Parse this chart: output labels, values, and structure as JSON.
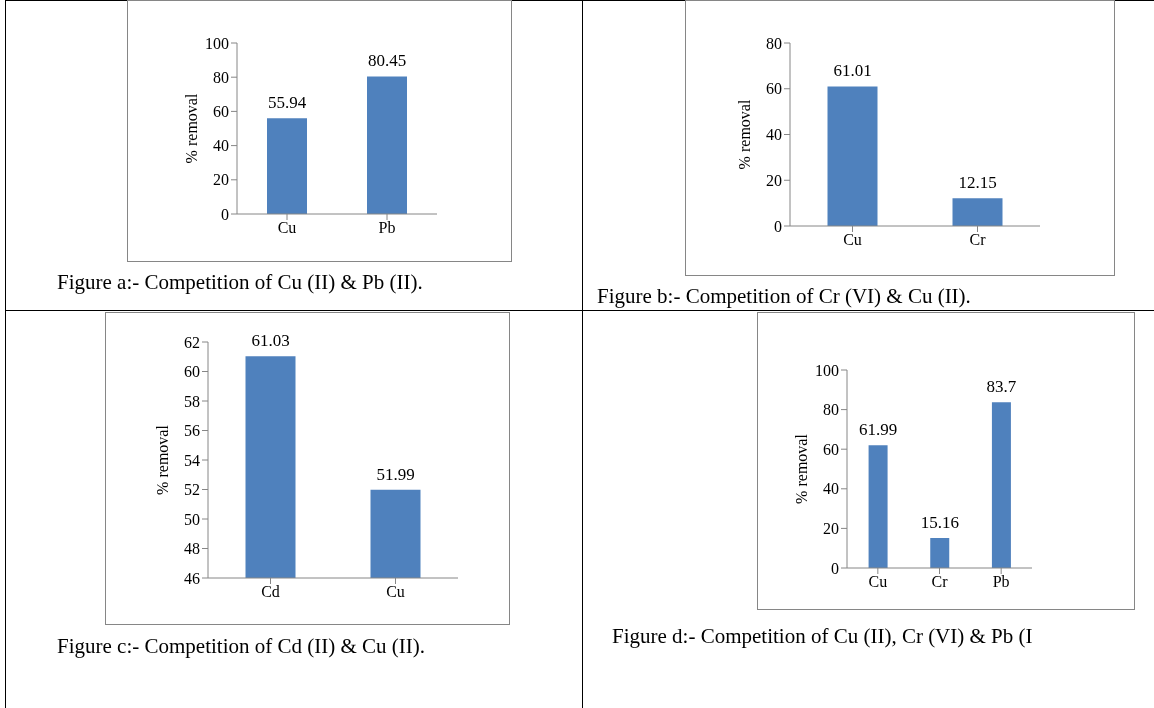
{
  "chart_data": [
    {
      "type": "bar",
      "title": "Figure a:- Competition of Cu (II) & Pb (II).",
      "ylabel": "% removal",
      "categories": [
        "Cu",
        "Pb"
      ],
      "values": [
        55.94,
        80.45
      ],
      "color": "#4f81bd",
      "ylim": [
        0,
        100
      ],
      "yticks": [
        0,
        20,
        40,
        60,
        80,
        100
      ],
      "data_labels": true
    },
    {
      "type": "bar",
      "title": "Figure b:- Competition of Cr (VI) & Cu (II).",
      "ylabel": "% removal",
      "categories": [
        "Cu",
        "Cr"
      ],
      "values": [
        61.01,
        12.15
      ],
      "color": "#4f81bd",
      "ylim": [
        0,
        80
      ],
      "yticks": [
        0,
        20,
        40,
        60,
        80
      ],
      "data_labels": true
    },
    {
      "type": "bar",
      "title": "Figure c:- Competition of Cd (II) & Cu (II).",
      "ylabel": "% removal",
      "categories": [
        "Cd",
        "Cu"
      ],
      "values": [
        61.03,
        51.99
      ],
      "color": "#4f81bd",
      "ylim": [
        46,
        62
      ],
      "yticks": [
        46,
        48,
        50,
        52,
        54,
        56,
        58,
        60,
        62
      ],
      "data_labels": true
    },
    {
      "type": "bar",
      "title": "Figure d:- Competition of Cu (II), Cr (VI) & Pb (I",
      "ylabel": "% removal",
      "categories": [
        "Cu",
        "Cr",
        "Pb"
      ],
      "values": [
        61.99,
        15.16,
        83.7
      ],
      "color": "#4f81bd",
      "ylim": [
        0,
        100
      ],
      "yticks": [
        0,
        20,
        40,
        60,
        80,
        100
      ],
      "data_labels": true
    }
  ]
}
